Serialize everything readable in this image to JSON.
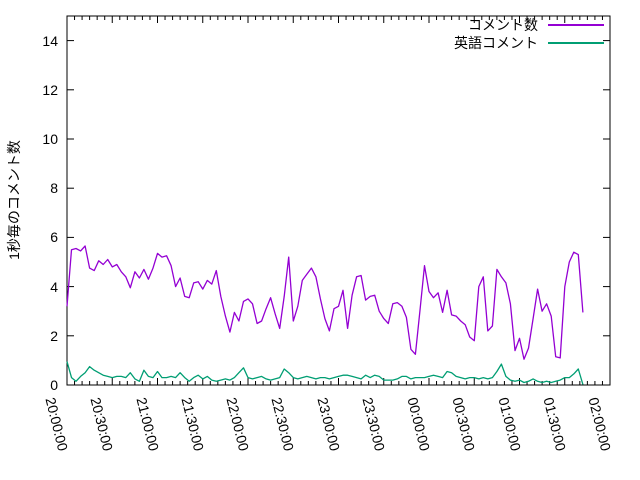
{
  "page": {
    "background": "#ffffff"
  },
  "chart_data": {
    "type": "line",
    "title": "",
    "xlabel": "",
    "ylabel": "1秒毎のコメント数",
    "grid": false,
    "legend": {
      "position": "top-right-inside"
    },
    "x_axis": {
      "tick_labels": [
        "20:00:00",
        "20:30:00",
        "21:00:00",
        "21:30:00",
        "22:00:00",
        "22:30:00",
        "23:00:00",
        "23:30:00",
        "00:00:00",
        "00:30:00",
        "01:00:00",
        "01:30:00",
        "02:00:00"
      ],
      "range_minutes": [
        0,
        360
      ],
      "major_interval_minutes": 30,
      "minor_interval_minutes": 5
    },
    "y_axis": {
      "ticks": [
        0,
        2,
        4,
        6,
        8,
        10,
        12,
        14
      ],
      "range": [
        0,
        15
      ]
    },
    "series": [
      {
        "name": "コメント数",
        "slug": "comments-per-sec",
        "color": "#9400d3",
        "x_start_min": 0,
        "x_step_min": 3,
        "values": [
          3.2,
          5.5,
          5.55,
          5.45,
          5.65,
          4.75,
          4.65,
          5.05,
          4.9,
          5.1,
          4.8,
          4.9,
          4.6,
          4.4,
          3.95,
          4.6,
          4.35,
          4.7,
          4.3,
          4.75,
          5.35,
          5.2,
          5.25,
          4.85,
          4.0,
          4.35,
          3.6,
          3.55,
          4.15,
          4.2,
          3.9,
          4.25,
          4.1,
          4.65,
          3.6,
          2.8,
          2.15,
          2.95,
          2.6,
          3.4,
          3.5,
          3.3,
          2.5,
          2.6,
          3.1,
          3.55,
          2.9,
          2.3,
          3.6,
          5.2,
          2.6,
          3.2,
          4.25,
          4.5,
          4.75,
          4.4,
          3.5,
          2.7,
          2.2,
          3.1,
          3.2,
          3.85,
          2.3,
          3.65,
          4.4,
          4.45,
          3.45,
          3.6,
          3.65,
          3.0,
          2.7,
          2.5,
          3.3,
          3.35,
          3.2,
          2.75,
          1.45,
          1.25,
          3.0,
          4.85,
          3.8,
          3.55,
          3.75,
          2.95,
          3.85,
          2.85,
          2.8,
          2.6,
          2.45,
          1.95,
          1.8,
          4.0,
          4.4,
          2.2,
          2.4,
          4.7,
          4.4,
          4.15,
          3.3,
          1.4,
          1.9,
          1.05,
          1.5,
          2.7,
          3.9,
          3.0,
          3.3,
          2.8,
          1.15,
          1.1,
          4.0,
          5.0,
          5.4,
          5.3,
          2.95
        ]
      },
      {
        "name": "英語コメント",
        "slug": "english-comments",
        "color": "#009e73",
        "x_start_min": 0,
        "x_step_min": 3,
        "values": [
          0.95,
          0.3,
          0.15,
          0.35,
          0.5,
          0.75,
          0.6,
          0.5,
          0.4,
          0.35,
          0.3,
          0.35,
          0.35,
          0.3,
          0.5,
          0.25,
          0.15,
          0.6,
          0.35,
          0.3,
          0.55,
          0.3,
          0.3,
          0.35,
          0.3,
          0.5,
          0.3,
          0.15,
          0.3,
          0.4,
          0.25,
          0.35,
          0.2,
          0.15,
          0.2,
          0.25,
          0.2,
          0.3,
          0.5,
          0.7,
          0.3,
          0.25,
          0.3,
          0.35,
          0.25,
          0.2,
          0.25,
          0.3,
          0.65,
          0.5,
          0.3,
          0.25,
          0.3,
          0.35,
          0.3,
          0.25,
          0.3,
          0.3,
          0.25,
          0.3,
          0.35,
          0.4,
          0.4,
          0.35,
          0.3,
          0.25,
          0.4,
          0.3,
          0.4,
          0.35,
          0.2,
          0.2,
          0.2,
          0.25,
          0.35,
          0.35,
          0.25,
          0.3,
          0.3,
          0.3,
          0.35,
          0.4,
          0.35,
          0.3,
          0.55,
          0.5,
          0.35,
          0.3,
          0.25,
          0.3,
          0.3,
          0.25,
          0.3,
          0.25,
          0.3,
          0.55,
          0.85,
          0.35,
          0.2,
          0.15,
          0.2,
          0.1,
          0.15,
          0.25,
          0.15,
          0.1,
          0.15,
          0.1,
          0.15,
          0.2,
          0.3,
          0.3,
          0.45,
          0.65,
          0.02
        ]
      }
    ]
  }
}
